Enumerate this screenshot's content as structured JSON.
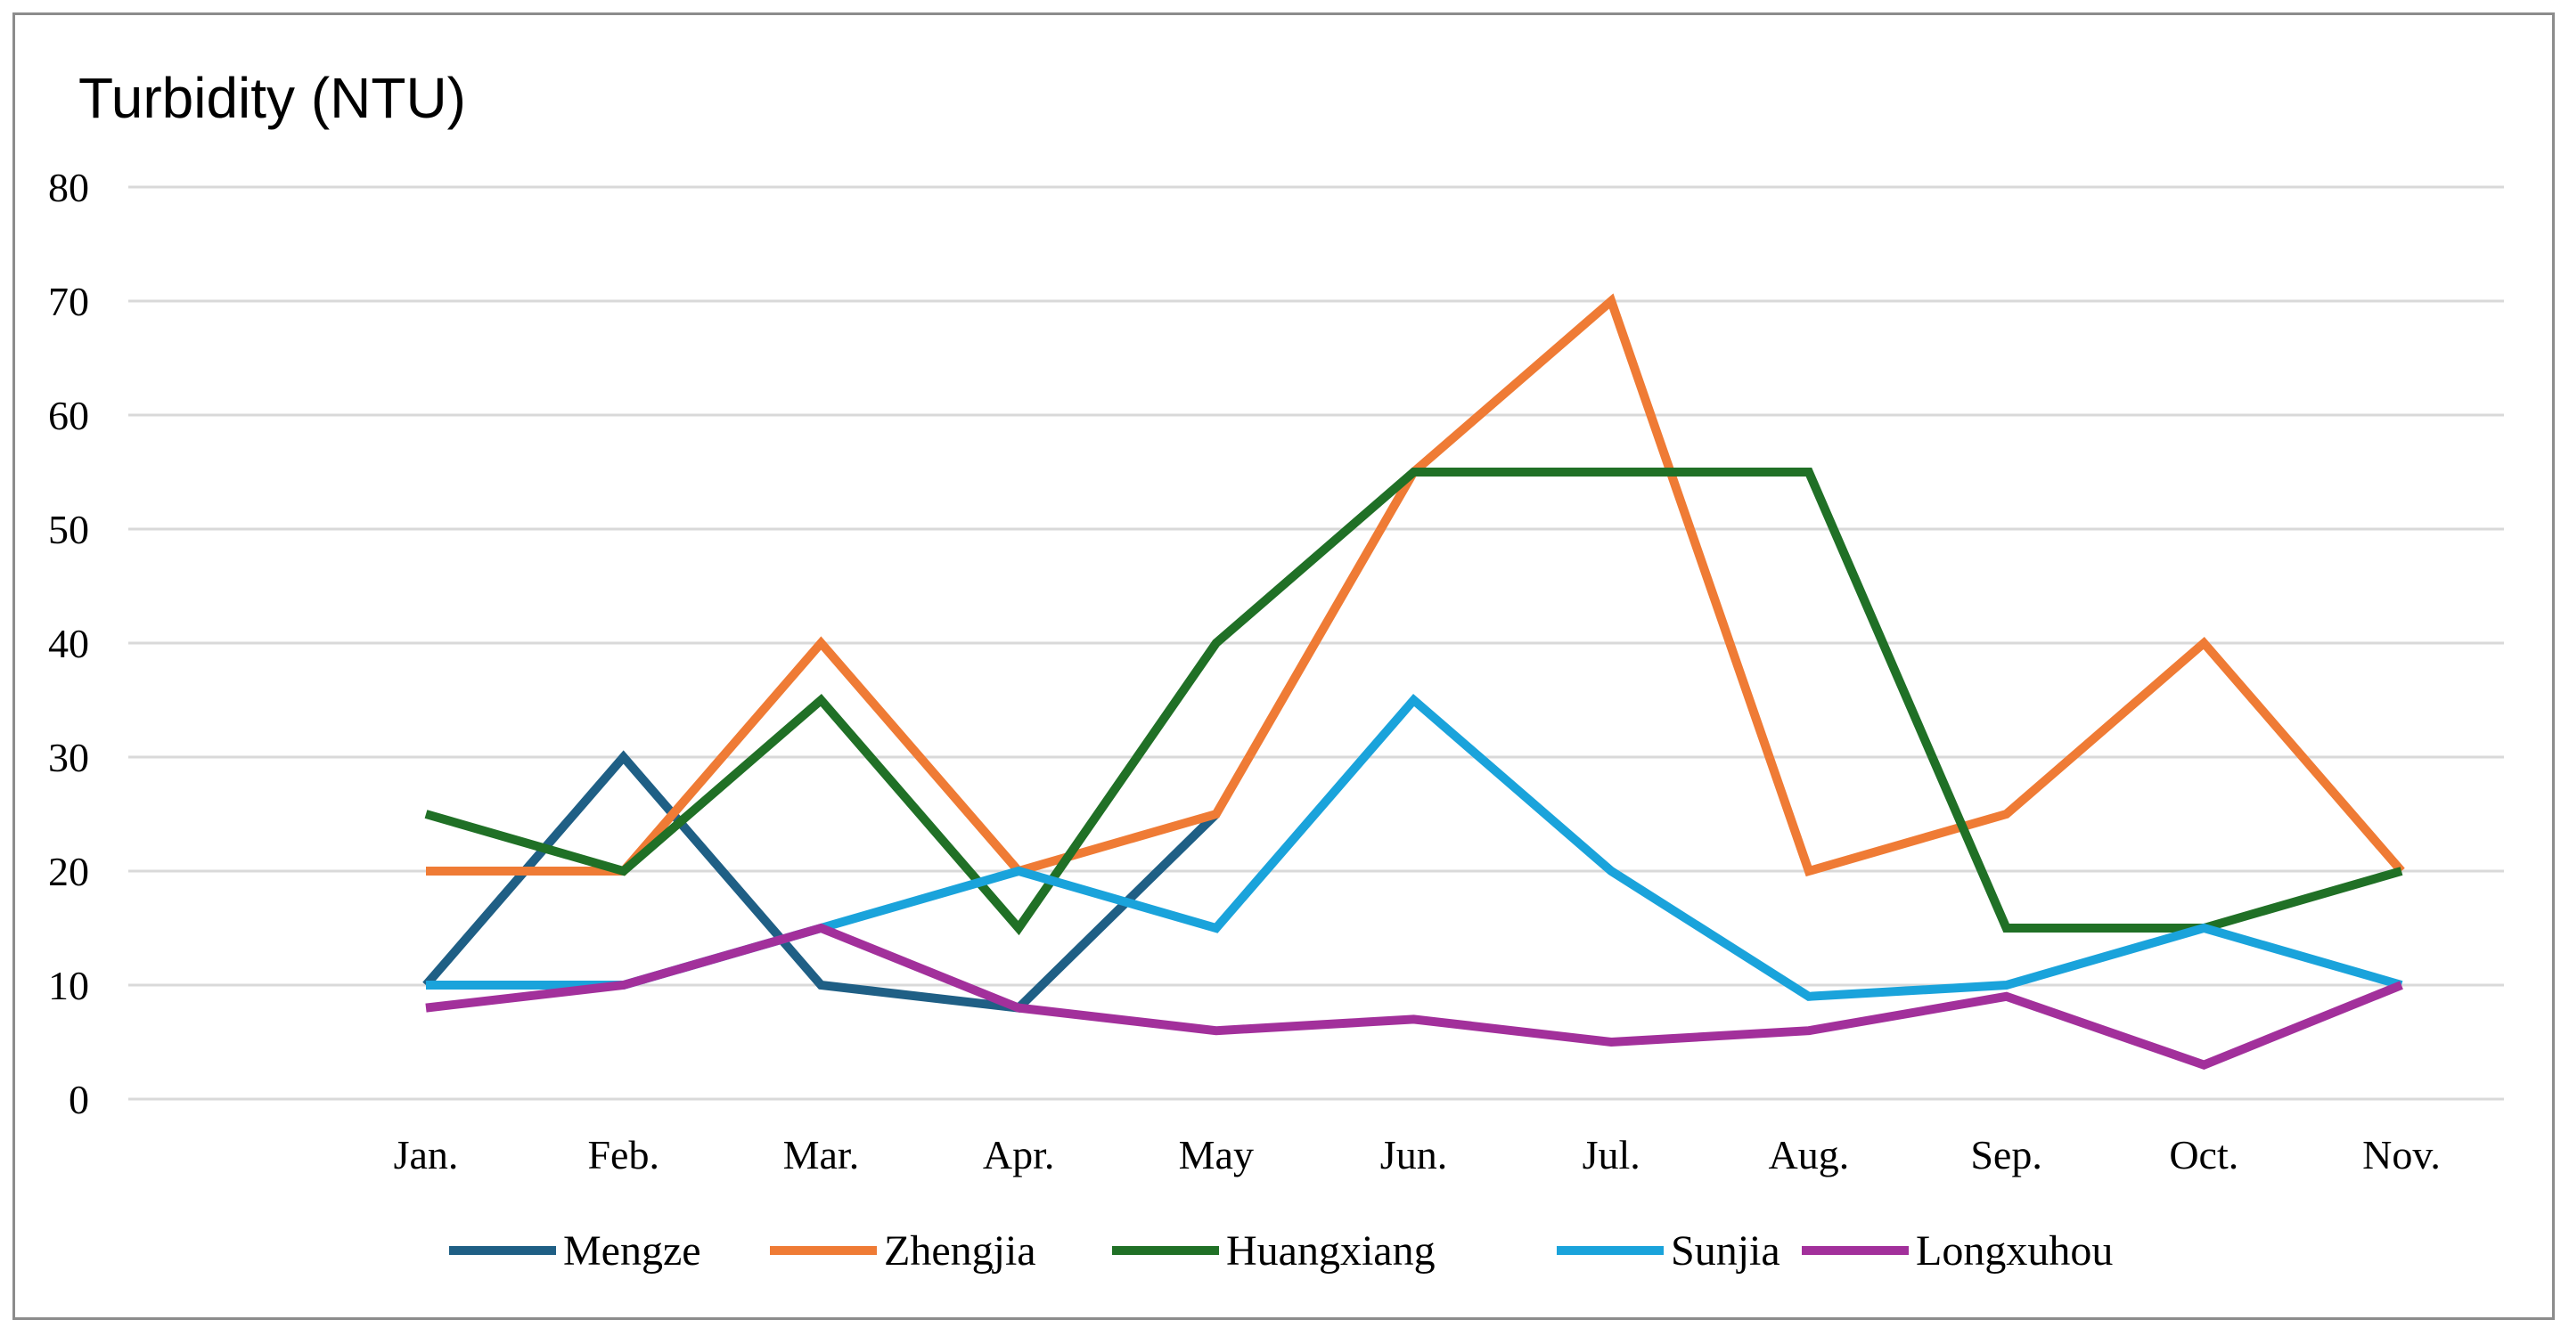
{
  "chart_data": {
    "type": "line",
    "title": "",
    "ylabel": "Turbidity (NTU)",
    "xlabel": "",
    "categories": [
      "Jan.",
      "Feb.",
      "Mar.",
      "Apr.",
      "May",
      "Jun.",
      "Jul.",
      "Aug.",
      "Sep.",
      "Oct.",
      "Nov."
    ],
    "ylim": [
      0,
      80
    ],
    "yticks": [
      "0",
      "10",
      "20",
      "30",
      "40",
      "50",
      "60",
      "70",
      "80"
    ],
    "grid": true,
    "legend_position": "bottom",
    "series": [
      {
        "name": "Mengze",
        "color": "#1f5f85",
        "values": [
          10,
          30,
          10,
          8,
          25,
          null,
          null,
          null,
          null,
          null,
          null
        ]
      },
      {
        "name": "Zhengjia",
        "color": "#ef7b35",
        "values": [
          20,
          20,
          40,
          20,
          25,
          55,
          70,
          20,
          25,
          40,
          20
        ]
      },
      {
        "name": "Huangxiang",
        "color": "#207026",
        "values": [
          25,
          20,
          35,
          15,
          40,
          55,
          55,
          55,
          15,
          15,
          20
        ]
      },
      {
        "name": "Sunjia",
        "color": "#1aa3db",
        "values": [
          10,
          10,
          15,
          20,
          15,
          35,
          20,
          9,
          10,
          15,
          10
        ]
      },
      {
        "name": "Longxuhou",
        "color": "#a2309b",
        "values": [
          8,
          10,
          15,
          8,
          6,
          7,
          5,
          6,
          9,
          3,
          10
        ]
      }
    ]
  }
}
